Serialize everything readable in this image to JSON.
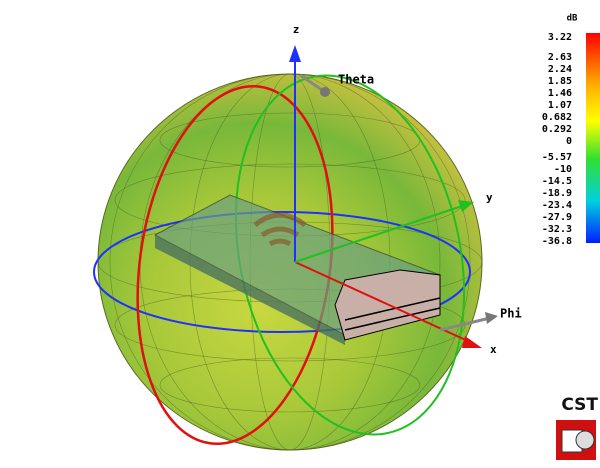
{
  "axes": {
    "z": "z",
    "y": "y",
    "x": "x",
    "theta": "Theta",
    "phi": "Phi"
  },
  "colorbar": {
    "unit": "dB",
    "labels": [
      "3.22",
      "2.63",
      "2.24",
      "1.85",
      "1.46",
      "1.07",
      "0.682",
      "0.292",
      "0",
      "-5.57",
      "-10",
      "-14.5",
      "-18.9",
      "-23.4",
      "-27.9",
      "-32.3",
      "-36.8"
    ]
  },
  "logo": "CST"
}
